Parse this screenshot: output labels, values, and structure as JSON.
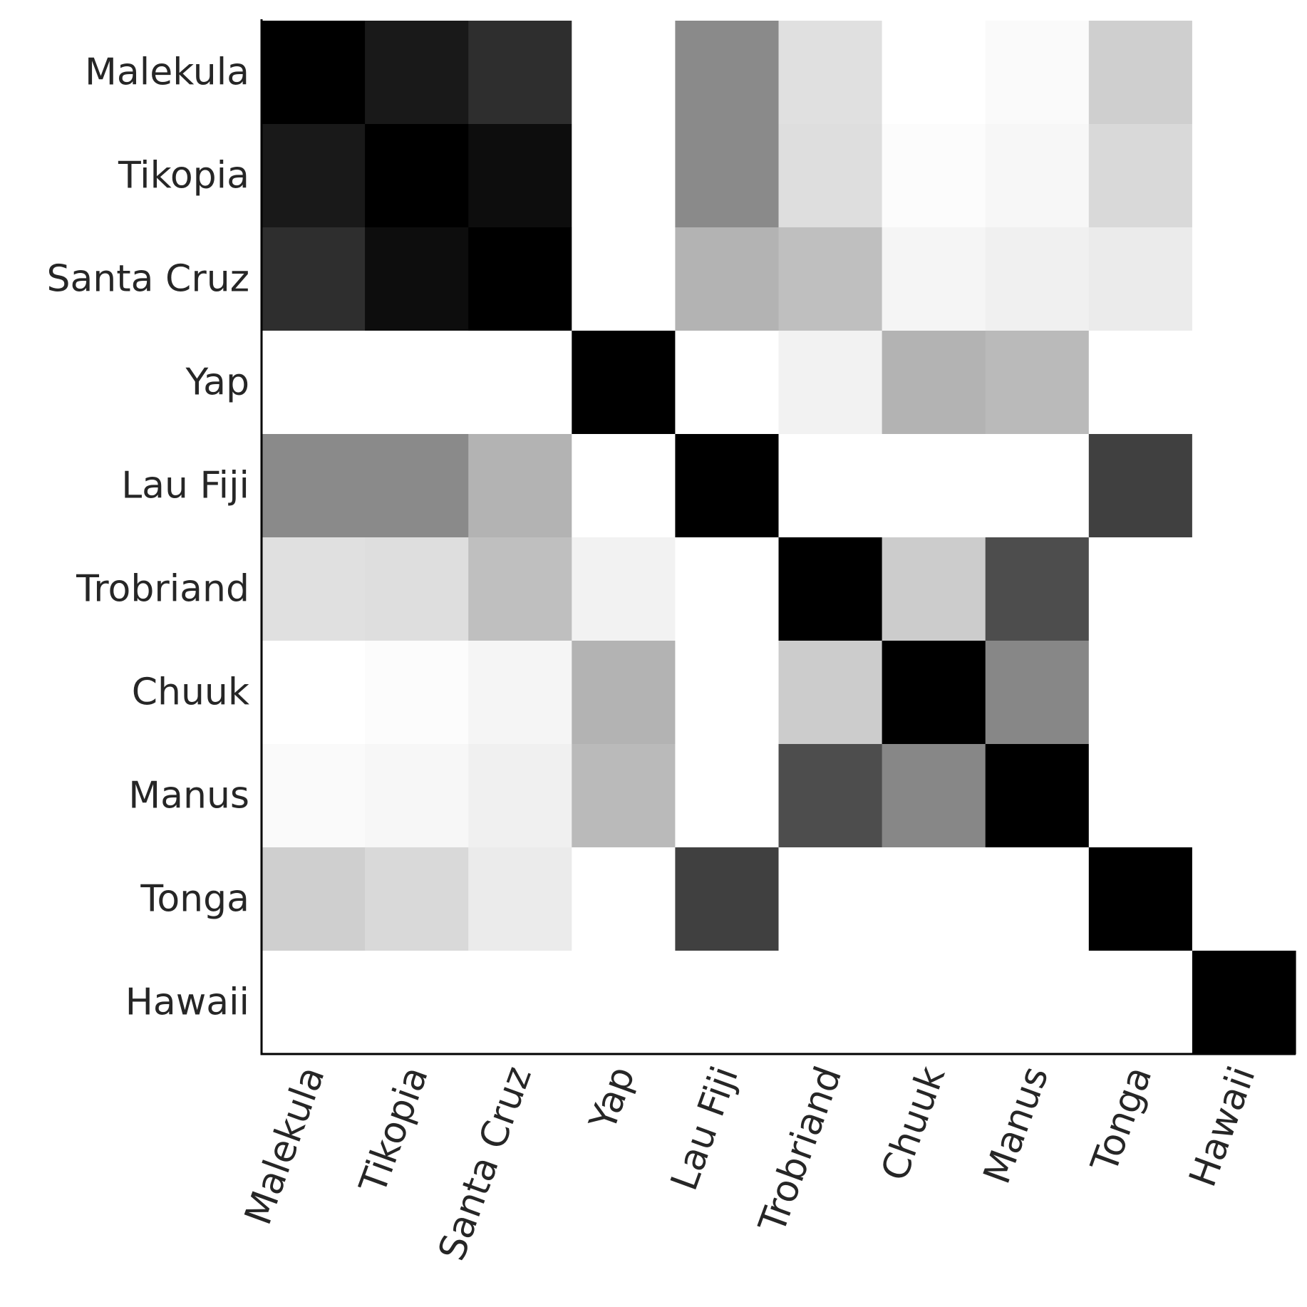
{
  "chart_data": {
    "type": "heatmap",
    "title": "",
    "xlabel": "",
    "ylabel": "",
    "colormap": "grayscale, white = 0, black = 1",
    "grid": false,
    "legend": "none",
    "value_range": [
      0,
      1
    ],
    "x_categories": [
      "Malekula",
      "Tikopia",
      "Santa Cruz",
      "Yap",
      "Lau Fiji",
      "Trobriand",
      "Chuuk",
      "Manus",
      "Tonga",
      "Hawaii"
    ],
    "y_categories": [
      "Malekula",
      "Tikopia",
      "Santa Cruz",
      "Yap",
      "Lau Fiji",
      "Trobriand",
      "Chuuk",
      "Manus",
      "Tonga",
      "Hawaii"
    ],
    "values": [
      [
        1.0,
        0.9,
        0.82,
        0.0,
        0.46,
        0.12,
        0.0,
        0.02,
        0.19,
        0.0
      ],
      [
        0.9,
        1.0,
        0.95,
        0.0,
        0.46,
        0.13,
        0.01,
        0.03,
        0.15,
        0.0
      ],
      [
        0.82,
        0.95,
        1.0,
        0.0,
        0.3,
        0.25,
        0.04,
        0.06,
        0.08,
        0.0
      ],
      [
        0.0,
        0.0,
        0.0,
        1.0,
        0.0,
        0.05,
        0.3,
        0.27,
        0.0,
        0.0
      ],
      [
        0.46,
        0.46,
        0.3,
        0.0,
        1.0,
        0.0,
        0.0,
        0.0,
        0.75,
        0.0
      ],
      [
        0.12,
        0.13,
        0.25,
        0.05,
        0.0,
        1.0,
        0.2,
        0.7,
        0.0,
        0.0
      ],
      [
        0.0,
        0.01,
        0.04,
        0.3,
        0.0,
        0.2,
        1.0,
        0.47,
        0.0,
        0.0
      ],
      [
        0.02,
        0.03,
        0.06,
        0.27,
        0.0,
        0.7,
        0.47,
        1.0,
        0.0,
        0.0
      ],
      [
        0.19,
        0.15,
        0.08,
        0.0,
        0.75,
        0.0,
        0.0,
        0.0,
        1.0,
        0.0
      ],
      [
        0.0,
        0.0,
        0.0,
        0.0,
        0.0,
        0.0,
        0.0,
        0.0,
        0.0,
        1.0
      ]
    ]
  }
}
